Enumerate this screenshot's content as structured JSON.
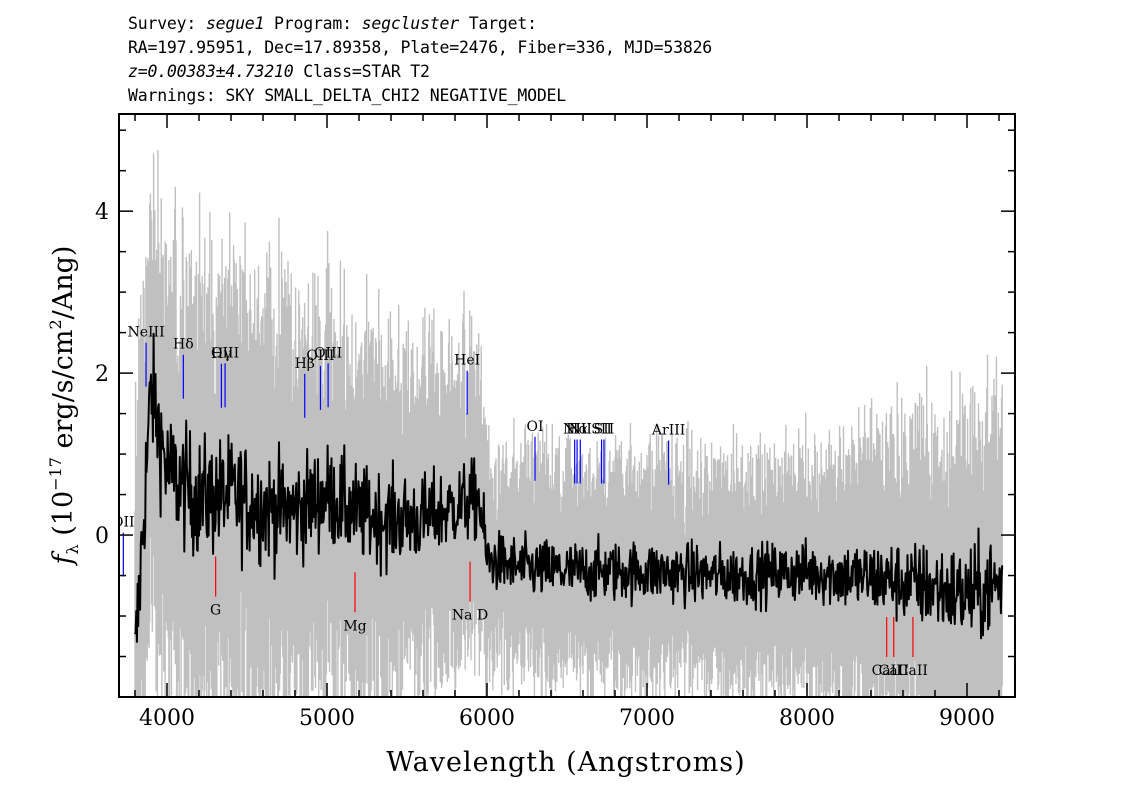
{
  "header": {
    "survey_label": "Survey:",
    "survey": "segue1",
    "program_label": "Program:",
    "program": "segcluster",
    "target_label": "Target:",
    "line2": "RA=197.95951, Dec=17.89358, Plate=2476, Fiber=336, MJD=53826",
    "redshift": "z=0.00383±4.73210",
    "class_text": "Class=STAR T2",
    "warnings": "Warnings: SKY SMALL_DELTA_CHI2 NEGATIVE_MODEL"
  },
  "chart_data": {
    "type": "line",
    "xlabel": "Wavelength (Angstroms)",
    "ylabel": "f_λ (10^-17 erg/s/cm^2/Ang)",
    "xlim": [
      3700,
      9300
    ],
    "ylim": [
      -2.0,
      5.2
    ],
    "xticks": [
      4000,
      5000,
      6000,
      7000,
      8000,
      9000
    ],
    "yticks": [
      0,
      2,
      4
    ],
    "series": [
      {
        "role": "flux",
        "color": "#000000",
        "x_range": [
          3800,
          9220
        ]
      },
      {
        "role": "error",
        "color": "#c0c0c0",
        "x_range": [
          3800,
          9220
        ]
      }
    ],
    "flux_profile": [
      [
        3800,
        -1.6
      ],
      [
        3900,
        1.8
      ],
      [
        4000,
        0.8
      ],
      [
        4100,
        0.6
      ],
      [
        4200,
        0.45
      ],
      [
        4400,
        0.5
      ],
      [
        4600,
        0.35
      ],
      [
        4800,
        0.3
      ],
      [
        5000,
        0.5
      ],
      [
        5200,
        0.25
      ],
      [
        5400,
        0.2
      ],
      [
        5600,
        0.2
      ],
      [
        5800,
        0.35
      ],
      [
        5950,
        0.45
      ],
      [
        6000,
        -0.3
      ],
      [
        6200,
        -0.4
      ],
      [
        6500,
        -0.45
      ],
      [
        7000,
        -0.45
      ],
      [
        7500,
        -0.5
      ],
      [
        8000,
        -0.45
      ],
      [
        8500,
        -0.55
      ],
      [
        8800,
        -0.65
      ],
      [
        9000,
        -0.75
      ],
      [
        9220,
        -0.6
      ]
    ],
    "emission_lines": [
      {
        "label": "OII",
        "wavelength": 3727
      },
      {
        "label": "NeIII",
        "wavelength": 3869
      },
      {
        "label": "Hδ",
        "wavelength": 4102
      },
      {
        "label": "Hγ",
        "wavelength": 4340
      },
      {
        "label": "OIII",
        "wavelength": 4363
      },
      {
        "label": "Hβ",
        "wavelength": 4861
      },
      {
        "label": "OIII",
        "wavelength": 4959
      },
      {
        "label": "OIII",
        "wavelength": 5007
      },
      {
        "label": "HeI",
        "wavelength": 5876
      },
      {
        "label": "OI",
        "wavelength": 6300
      },
      {
        "label": "NII",
        "wavelength": 6548
      },
      {
        "label": "Hα",
        "wavelength": 6563
      },
      {
        "label": "NII",
        "wavelength": 6583
      },
      {
        "label": "SII",
        "wavelength": 6716
      },
      {
        "label": "SII",
        "wavelength": 6731
      },
      {
        "label": "ArIII",
        "wavelength": 7135
      }
    ],
    "absorption_lines": [
      {
        "label": "G",
        "wavelength": 4304
      },
      {
        "label": "Mg",
        "wavelength": 5175
      },
      {
        "label": "Na D",
        "wavelength": 5894
      },
      {
        "label": "CaII",
        "wavelength": 8498
      },
      {
        "label": "CaII",
        "wavelength": 8542
      },
      {
        "label": "CaII",
        "wavelength": 8662
      }
    ],
    "emission_color": "#0000ff",
    "absorption_color": "#ff0000"
  }
}
